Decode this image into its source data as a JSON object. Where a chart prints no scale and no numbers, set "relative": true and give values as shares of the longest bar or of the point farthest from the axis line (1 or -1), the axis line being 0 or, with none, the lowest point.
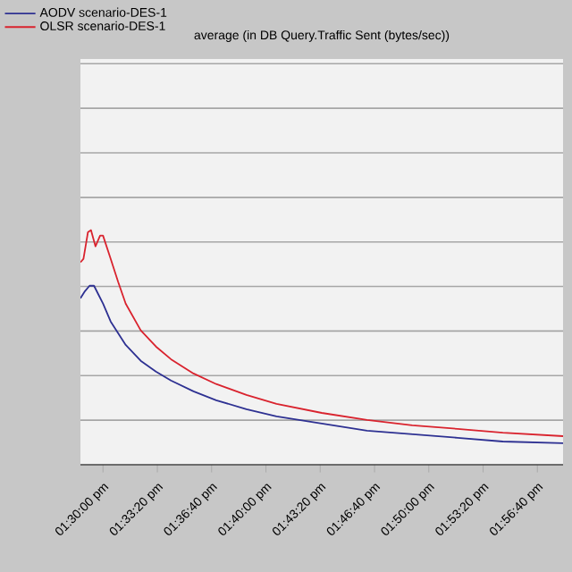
{
  "chart_data": {
    "type": "line",
    "title": "average (in DB Query.Traffic Sent (bytes/sec))",
    "relative": true,
    "grid": "y",
    "legend": "top left",
    "xlim": [
      13.4769,
      13.9707
    ],
    "xticks": [
      {
        "value": 13.5,
        "label": "01:30:00 pm"
      },
      {
        "value": 13.5556,
        "label": "01:33:20 pm"
      },
      {
        "value": 13.6111,
        "label": "01:36:40 pm"
      },
      {
        "value": 13.6667,
        "label": "01:40:00 pm"
      },
      {
        "value": 13.7222,
        "label": "01:43:20 pm"
      },
      {
        "value": 13.7778,
        "label": "01:46:40 pm"
      },
      {
        "value": 13.8333,
        "label": "01:50:00 pm"
      },
      {
        "value": 13.8889,
        "label": "01:53:20 pm"
      },
      {
        "value": 13.9444,
        "label": "01:56:40 pm"
      }
    ],
    "series": [
      {
        "name": "AODV scenario-DES-1",
        "color": "#2e3192",
        "x": [
          13.4769,
          13.4815,
          13.4862,
          13.4908,
          13.4954,
          13.5,
          13.5078,
          13.5232,
          13.5386,
          13.5541,
          13.5695,
          13.5926,
          13.6158,
          13.6467,
          13.6775,
          13.7238,
          13.7701,
          13.8164,
          13.8627,
          13.909,
          13.9707
        ],
        "values": [
          0.71,
          0.74,
          0.763,
          0.763,
          0.725,
          0.687,
          0.611,
          0.511,
          0.443,
          0.397,
          0.359,
          0.313,
          0.275,
          0.237,
          0.206,
          0.176,
          0.145,
          0.13,
          0.115,
          0.099,
          0.092
        ]
      },
      {
        "name": "OLSR scenario-DES-1",
        "color": "#d9232e",
        "x": [
          13.4769,
          13.48,
          13.4846,
          13.4877,
          13.4923,
          13.497,
          13.5,
          13.5078,
          13.5155,
          13.5232,
          13.5386,
          13.5541,
          13.5695,
          13.5926,
          13.6158,
          13.6467,
          13.6775,
          13.7238,
          13.7701,
          13.8164,
          13.8627,
          13.909,
          13.9707
        ],
        "values": [
          0.863,
          0.878,
          0.992,
          1.0,
          0.931,
          0.977,
          0.977,
          0.878,
          0.779,
          0.687,
          0.573,
          0.504,
          0.45,
          0.389,
          0.344,
          0.298,
          0.26,
          0.221,
          0.191,
          0.168,
          0.153,
          0.137,
          0.122
        ]
      }
    ]
  }
}
